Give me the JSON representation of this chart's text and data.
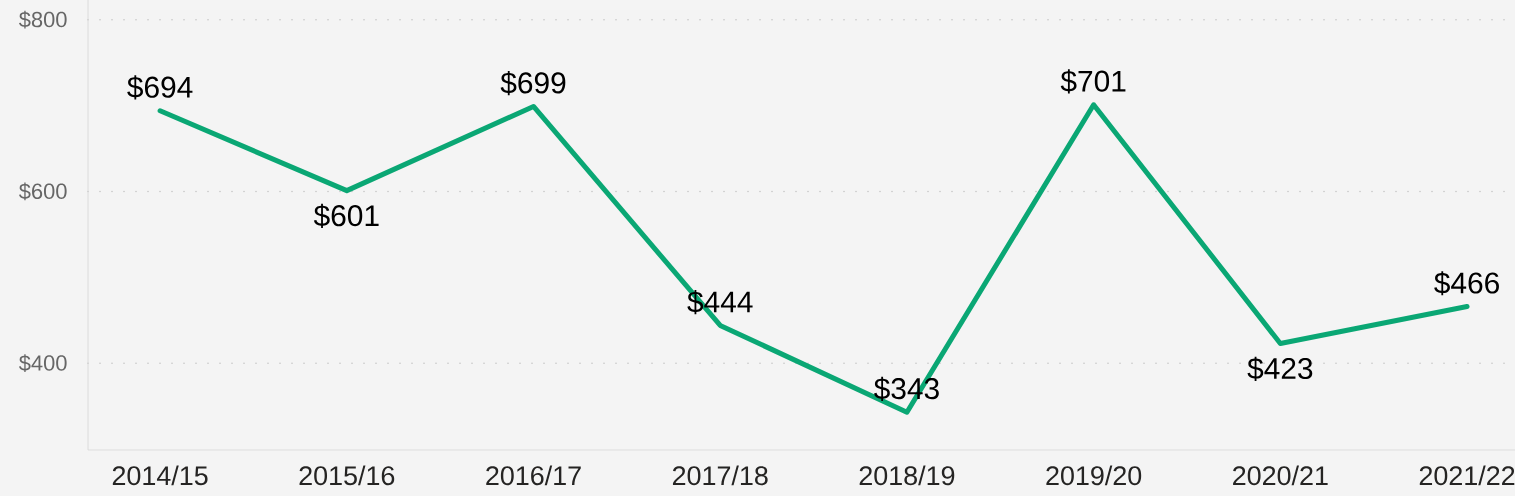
{
  "chart_data": {
    "type": "line",
    "categories": [
      "2014/15",
      "2015/16",
      "2016/17",
      "2017/18",
      "2018/19",
      "2019/20",
      "2020/21",
      "2021/22"
    ],
    "values": [
      694,
      601,
      699,
      444,
      343,
      701,
      423,
      466
    ],
    "value_labels": [
      "$694",
      "$601",
      "$699",
      "$444",
      "$343",
      "$701",
      "$423",
      "$466"
    ],
    "color": "#0aa774",
    "ylim": [
      299,
      823
    ],
    "yticks": [
      {
        "value": 400,
        "label": "$400"
      },
      {
        "value": 600,
        "label": "$600"
      },
      {
        "value": 800,
        "label": "$800"
      }
    ],
    "grid": "y",
    "line_style": "solid"
  }
}
